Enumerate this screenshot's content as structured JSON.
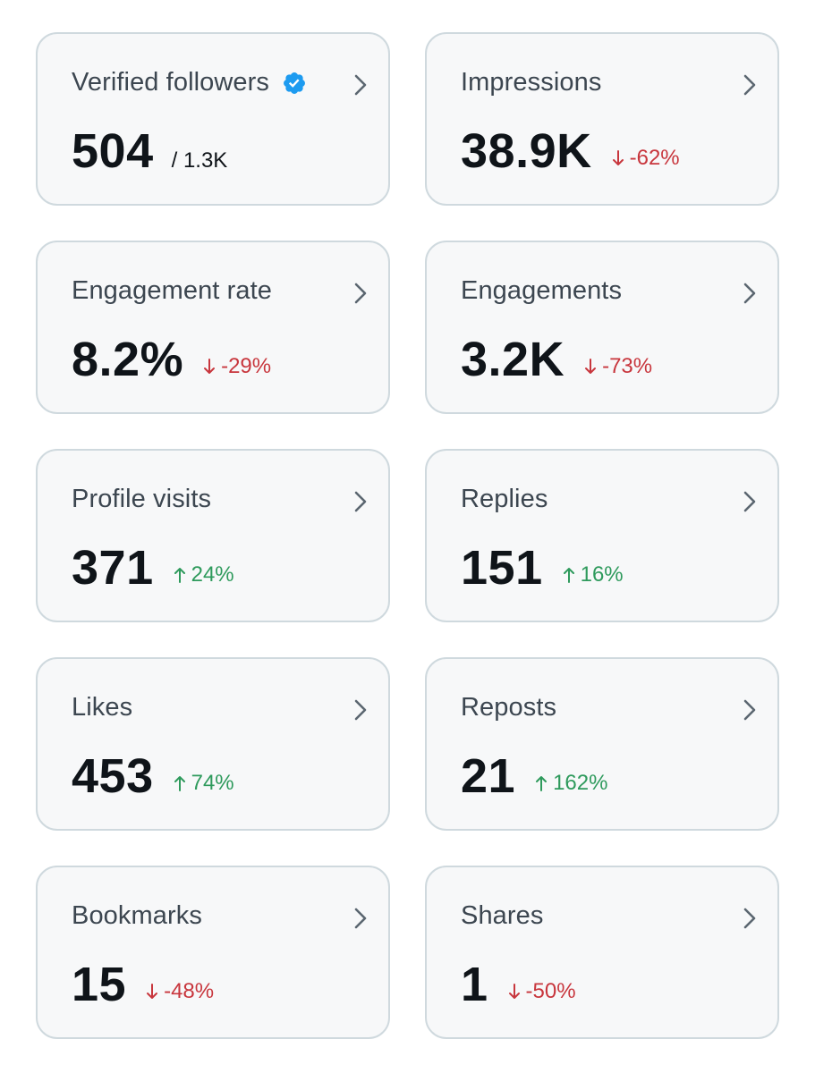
{
  "cards": [
    {
      "label": "Verified followers",
      "value": "504",
      "sub": "/ 1.3K",
      "delta": "",
      "direction": "none",
      "verified": true
    },
    {
      "label": "Impressions",
      "value": "38.9K",
      "sub": "",
      "delta": "-62%",
      "direction": "down"
    },
    {
      "label": "Engagement rate",
      "value": "8.2%",
      "sub": "",
      "delta": "-29%",
      "direction": "down"
    },
    {
      "label": "Engagements",
      "value": "3.2K",
      "sub": "",
      "delta": "-73%",
      "direction": "down"
    },
    {
      "label": "Profile visits",
      "value": "371",
      "sub": "",
      "delta": "24%",
      "direction": "up"
    },
    {
      "label": "Replies",
      "value": "151",
      "sub": "",
      "delta": "16%",
      "direction": "up"
    },
    {
      "label": "Likes",
      "value": "453",
      "sub": "",
      "delta": "74%",
      "direction": "up"
    },
    {
      "label": "Reposts",
      "value": "21",
      "sub": "",
      "delta": "162%",
      "direction": "up"
    },
    {
      "label": "Bookmarks",
      "value": "15",
      "sub": "",
      "delta": "-48%",
      "direction": "down"
    },
    {
      "label": "Shares",
      "value": "1",
      "sub": "",
      "delta": "-50%",
      "direction": "down"
    }
  ],
  "colors": {
    "down": "#c8363d",
    "up": "#2e9a5c",
    "verified": "#1d9bf0"
  }
}
